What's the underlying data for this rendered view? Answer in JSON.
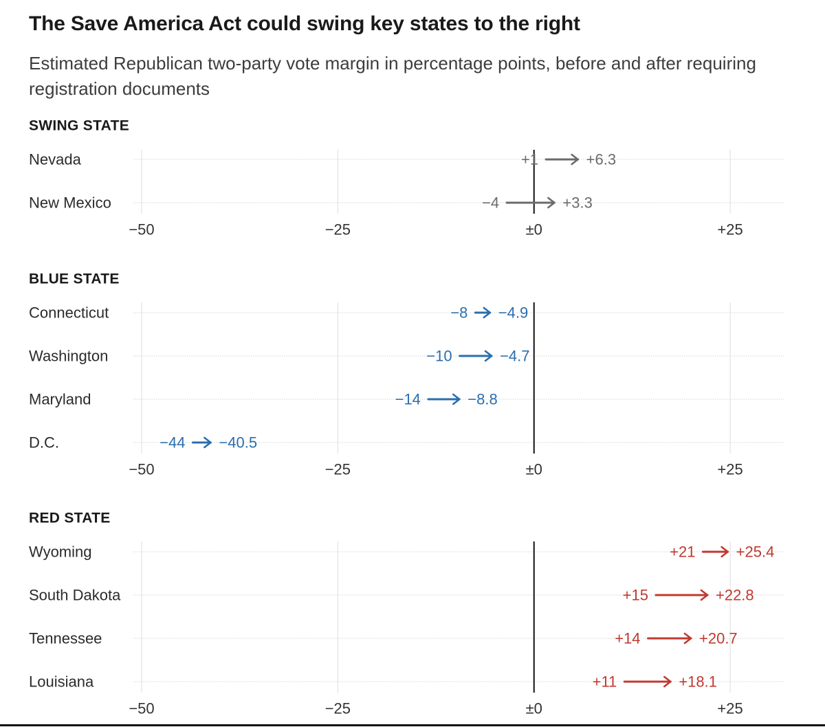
{
  "title": "The Save America Act could swing key states to the right",
  "subtitle": "Estimated Republican two-party vote margin in percentage points, before and after requiring registration documents",
  "colors": {
    "swing": "#6b6b6b",
    "blue": "#2a6ead",
    "red": "#c0392f",
    "zero_line": "#111111",
    "grid": "#dddddd",
    "row_line": "#d6d6d6"
  },
  "chart_data": [
    {
      "type": "arrow",
      "group": "SWING STATE",
      "color_key": "swing",
      "xlim": [
        -50,
        32
      ],
      "xticks": [
        -50,
        -25,
        0,
        25
      ],
      "xtick_labels": [
        "−50",
        "−25",
        "±0",
        "+25"
      ],
      "grid": true,
      "rows": [
        {
          "label": "Nevada",
          "before": 1,
          "after": 6.3,
          "before_label": "+1",
          "after_label": "+6.3"
        },
        {
          "label": "New Mexico",
          "before": -4,
          "after": 3.3,
          "before_label": "−4",
          "after_label": "+3.3"
        }
      ]
    },
    {
      "type": "arrow",
      "group": "BLUE STATE",
      "color_key": "blue",
      "xlim": [
        -50,
        32
      ],
      "xticks": [
        -50,
        -25,
        0,
        25
      ],
      "xtick_labels": [
        "−50",
        "−25",
        "±0",
        "+25"
      ],
      "grid": true,
      "rows": [
        {
          "label": "Connecticut",
          "before": -8,
          "after": -4.9,
          "before_label": "−8",
          "after_label": "−4.9"
        },
        {
          "label": "Washington",
          "before": -10,
          "after": -4.7,
          "before_label": "−10",
          "after_label": "−4.7"
        },
        {
          "label": "Maryland",
          "before": -14,
          "after": -8.8,
          "before_label": "−14",
          "after_label": "−8.8"
        },
        {
          "label": "D.C.",
          "before": -44,
          "after": -40.5,
          "before_label": "−44",
          "after_label": "−40.5"
        }
      ]
    },
    {
      "type": "arrow",
      "group": "RED STATE",
      "color_key": "red",
      "xlim": [
        -50,
        32
      ],
      "xticks": [
        -50,
        -25,
        0,
        25
      ],
      "xtick_labels": [
        "−50",
        "−25",
        "±0",
        "+25"
      ],
      "grid": true,
      "rows": [
        {
          "label": "Wyoming",
          "before": 21,
          "after": 25.4,
          "before_label": "+21",
          "after_label": "+25.4"
        },
        {
          "label": "South Dakota",
          "before": 15,
          "after": 22.8,
          "before_label": "+15",
          "after_label": "+22.8"
        },
        {
          "label": "Tennessee",
          "before": 14,
          "after": 20.7,
          "before_label": "+14",
          "after_label": "+20.7"
        },
        {
          "label": "Louisiana",
          "before": 11,
          "after": 18.1,
          "before_label": "+11",
          "after_label": "+18.1"
        }
      ]
    }
  ]
}
